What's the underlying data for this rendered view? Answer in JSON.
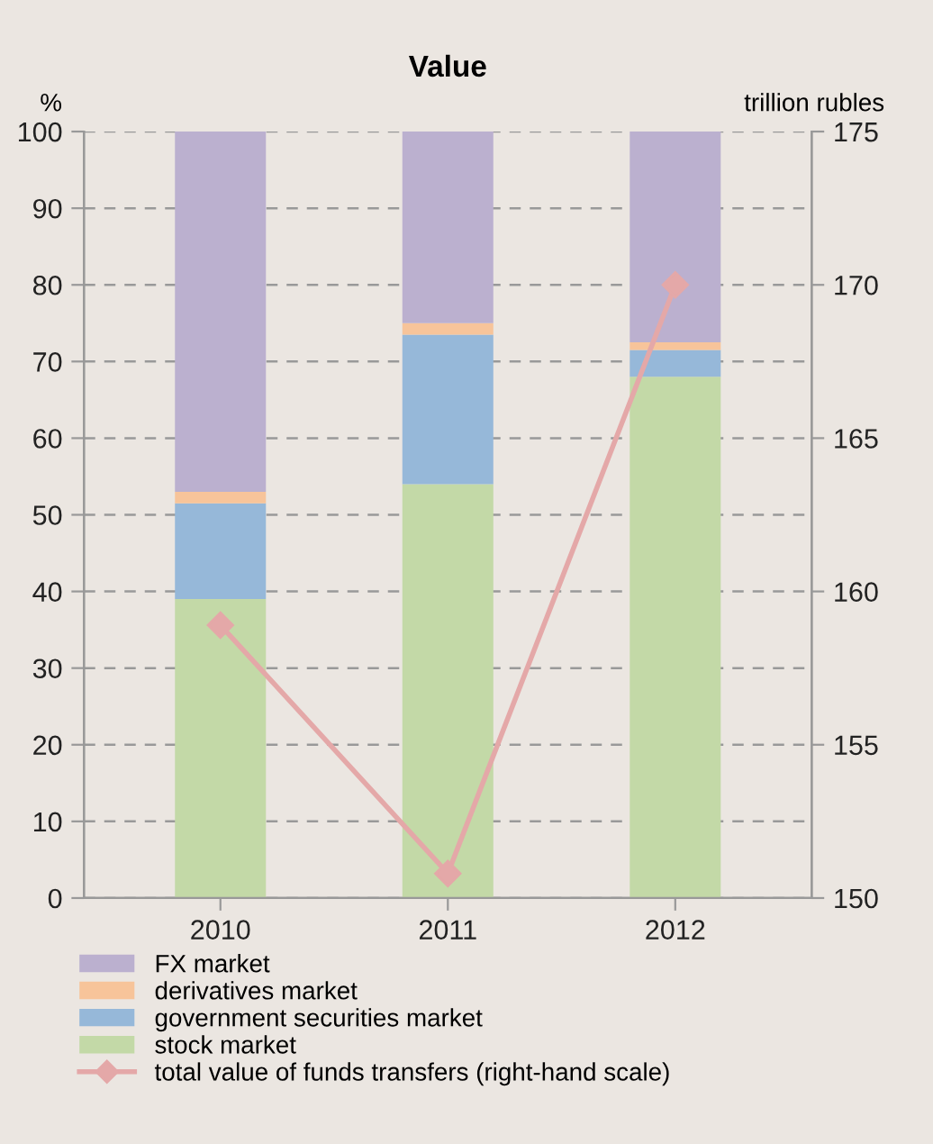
{
  "chart_data": {
    "type": "bar",
    "title": "Value",
    "ylabel": "%",
    "y2label": "trillion rubles",
    "categories": [
      "2010",
      "2011",
      "2012"
    ],
    "stacked": true,
    "series": [
      {
        "name": "stock market",
        "color": "#c3d9a7",
        "values": [
          39,
          54,
          68
        ]
      },
      {
        "name": "government securities market",
        "color": "#96b8d9",
        "values": [
          12.5,
          19.5,
          3.5
        ]
      },
      {
        "name": "derivatives market",
        "color": "#f7c49a",
        "values": [
          1.5,
          1.5,
          1
        ]
      },
      {
        "name": "FX market",
        "color": "#bbb0cf",
        "values": [
          47,
          25,
          27.5
        ]
      },
      {
        "name": "total value of funds transfers (right-hand scale)",
        "type": "line",
        "axis": "y2",
        "color": "#e4a8a8",
        "values": [
          158.9,
          150.8,
          170.0
        ],
        "marker": "diamond"
      }
    ],
    "ylim": [
      0,
      100
    ],
    "yticks": [
      0,
      10,
      20,
      30,
      40,
      50,
      60,
      70,
      80,
      90,
      100
    ],
    "y2lim": [
      150,
      175
    ],
    "y2ticks": [
      150,
      155,
      160,
      165,
      170,
      175
    ],
    "grid": "y",
    "legend": "bottom"
  }
}
